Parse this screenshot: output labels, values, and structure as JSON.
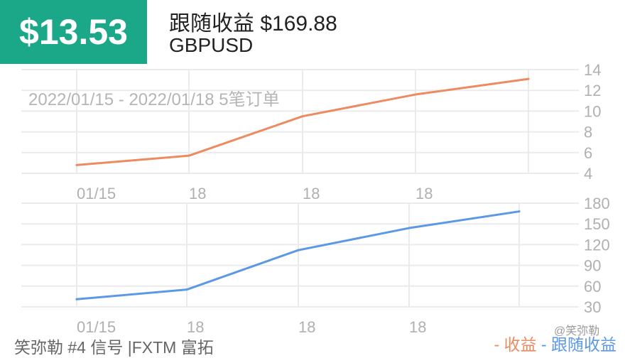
{
  "header": {
    "profit_value": "$13.53",
    "follow_label": "跟随收益",
    "follow_value": "$169.88",
    "symbol": "GBPUSD"
  },
  "date_range": "2022/01/15 - 2022/01/18 5笔订单",
  "footer": {
    "source": "笑弥勒 #4 信号 |FXTM 富拓",
    "watermark": "@笑弥勒"
  },
  "legend": {
    "profit": "收益",
    "follow": "跟随收益",
    "profit_color": "#ee8a5f",
    "follow_color": "#5b98e6"
  },
  "chart_data": [
    {
      "type": "line",
      "name": "收益",
      "x": [
        "01/15",
        "18",
        "18",
        "18",
        ""
      ],
      "y": [
        4.8,
        5.7,
        9.5,
        11.6,
        13.1
      ],
      "ylim": [
        4,
        14
      ],
      "yticks": [
        4,
        6,
        8,
        10,
        12,
        14
      ],
      "color": "#ee8a5f",
      "grid": true
    },
    {
      "type": "line",
      "name": "跟随收益",
      "x": [
        "01/15",
        "18",
        "18",
        "18",
        ""
      ],
      "y": [
        41,
        55,
        112,
        144,
        168
      ],
      "ylim": [
        30,
        180
      ],
      "yticks": [
        30,
        60,
        90,
        120,
        150,
        180
      ],
      "color": "#5b98e6",
      "grid": true
    }
  ]
}
